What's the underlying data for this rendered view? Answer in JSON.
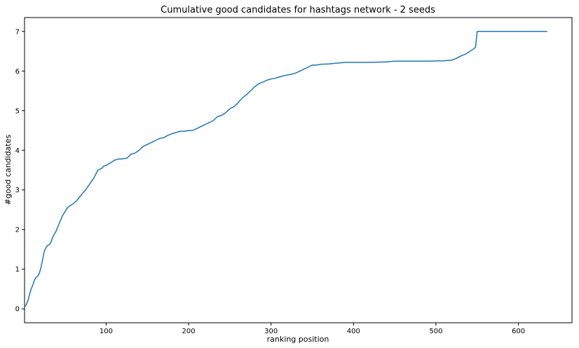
{
  "chart_data": {
    "type": "line",
    "title": "Cumulative good candidates for hashtags network - 2 seeds",
    "xlabel": "ranking position",
    "ylabel": "#good candidates",
    "xlim": [
      1,
      665
    ],
    "ylim": [
      -0.35,
      7.35
    ],
    "xticks": [
      100,
      200,
      300,
      400,
      500,
      600
    ],
    "yticks": [
      0,
      1,
      2,
      3,
      4,
      5,
      6,
      7
    ],
    "grid": false,
    "line_color": "#1f77b4",
    "series": [
      {
        "x": [
          1,
          3,
          5,
          7,
          9,
          11,
          13,
          15,
          17,
          19,
          21,
          23,
          25,
          27,
          29,
          31,
          33,
          35,
          37,
          39,
          41,
          43,
          45,
          47,
          50,
          53,
          56,
          60,
          65,
          70,
          75,
          80,
          85,
          90,
          95,
          97,
          100,
          105,
          110,
          115,
          118,
          125,
          130,
          135,
          140,
          145,
          150,
          155,
          160,
          165,
          170,
          175,
          180,
          185,
          190,
          195,
          200,
          205,
          210,
          215,
          220,
          225,
          230,
          235,
          240,
          245,
          250,
          255,
          260,
          265,
          270,
          275,
          280,
          285,
          290,
          295,
          300,
          305,
          310,
          315,
          320,
          325,
          330,
          335,
          340,
          345,
          350,
          355,
          360,
          370,
          380,
          390,
          400,
          420,
          440,
          450,
          470,
          490,
          510,
          520,
          525,
          530,
          535,
          540,
          545,
          548,
          550,
          560,
          600,
          635
        ],
        "y": [
          0.05,
          0.1,
          0.2,
          0.35,
          0.5,
          0.6,
          0.72,
          0.8,
          0.82,
          0.9,
          1.05,
          1.25,
          1.45,
          1.55,
          1.6,
          1.62,
          1.68,
          1.8,
          1.88,
          1.95,
          2.05,
          2.15,
          2.25,
          2.35,
          2.45,
          2.55,
          2.6,
          2.65,
          2.75,
          2.88,
          3.0,
          3.15,
          3.3,
          3.5,
          3.55,
          3.6,
          3.62,
          3.68,
          3.75,
          3.78,
          3.78,
          3.8,
          3.9,
          3.93,
          4.0,
          4.1,
          4.15,
          4.2,
          4.25,
          4.3,
          4.32,
          4.38,
          4.42,
          4.45,
          4.48,
          4.48,
          4.5,
          4.5,
          4.55,
          4.6,
          4.65,
          4.7,
          4.75,
          4.85,
          4.88,
          4.95,
          5.05,
          5.1,
          5.2,
          5.32,
          5.4,
          5.5,
          5.6,
          5.68,
          5.72,
          5.77,
          5.8,
          5.82,
          5.85,
          5.88,
          5.9,
          5.92,
          5.95,
          6.0,
          6.05,
          6.1,
          6.15,
          6.15,
          6.17,
          6.18,
          6.2,
          6.22,
          6.22,
          6.22,
          6.23,
          6.25,
          6.25,
          6.25,
          6.26,
          6.28,
          6.32,
          6.38,
          6.42,
          6.48,
          6.55,
          6.6,
          7.0,
          7.0,
          7.0,
          7.0
        ]
      }
    ]
  }
}
